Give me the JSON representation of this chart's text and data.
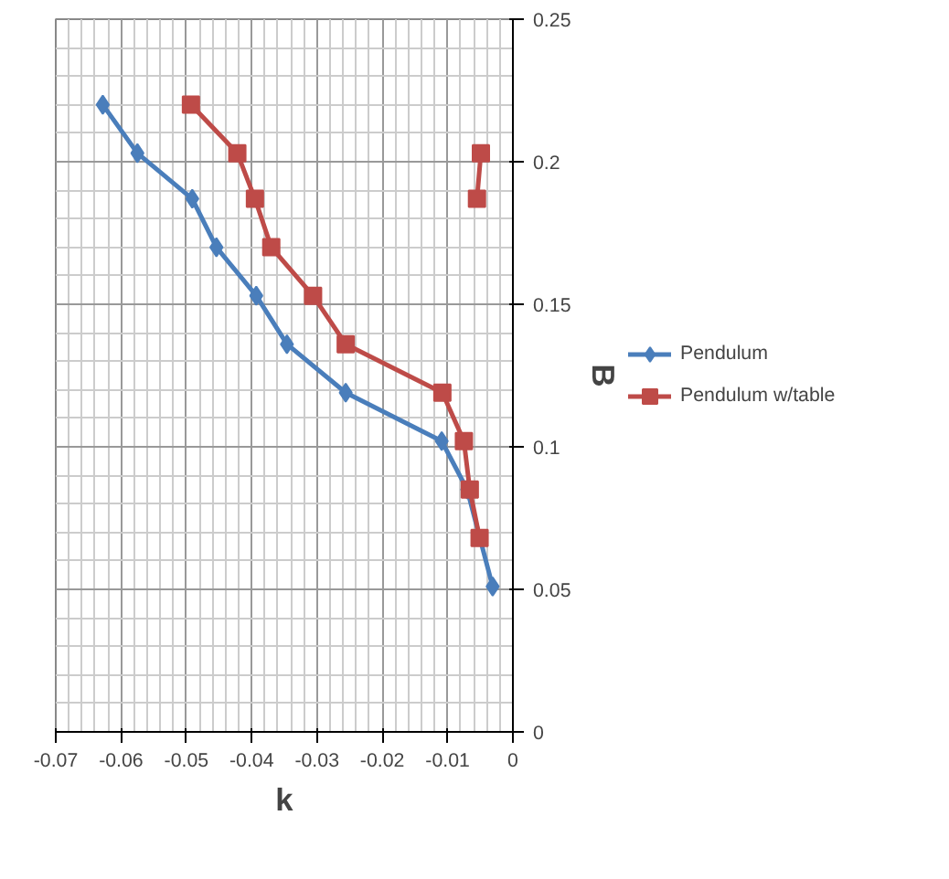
{
  "chart_data": {
    "type": "line",
    "xlabel": "k",
    "ylabel": "B",
    "xlim": [
      -0.07,
      0
    ],
    "ylim": [
      0,
      0.25
    ],
    "xticks": [
      -0.07,
      -0.06,
      -0.05,
      -0.04,
      -0.03,
      -0.02,
      -0.01,
      0
    ],
    "yticks": [
      0,
      0.05,
      0.1,
      0.15,
      0.2,
      0.25
    ],
    "grid": true,
    "legend": "right",
    "series": [
      {
        "name": "Pendulum",
        "color": "#4a7ebb",
        "marker": "diamond",
        "x": [
          -0.0628,
          -0.0575,
          -0.0491,
          -0.0454,
          -0.0393,
          -0.0346,
          -0.0256,
          -0.0109,
          -0.007,
          -0.0031
        ],
        "values": [
          0.22,
          0.203,
          0.187,
          0.17,
          0.153,
          0.136,
          0.119,
          0.102,
          0.085,
          0.051
        ]
      },
      {
        "name": "Pendulum w/table",
        "color": "#be4b48",
        "marker": "square",
        "x": [
          -0.0493,
          -0.0422,
          -0.0395,
          -0.037,
          -0.0306,
          -0.0256,
          -0.0108,
          -0.0075,
          -0.0066,
          -0.0051,
          null,
          -0.0049,
          -0.0055
        ],
        "values": [
          0.22,
          0.203,
          0.187,
          0.17,
          0.153,
          0.136,
          0.119,
          0.102,
          0.085,
          0.068,
          null,
          0.203,
          0.187
        ]
      }
    ]
  }
}
